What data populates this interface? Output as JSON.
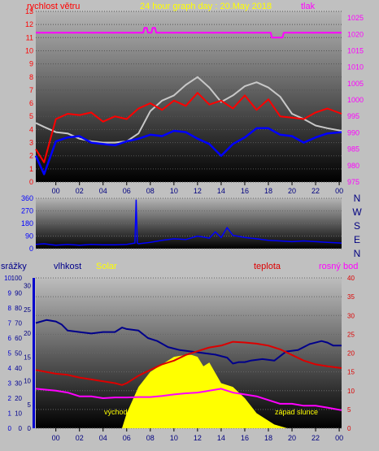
{
  "chart_data": [
    {
      "type": "line",
      "title": "24 hour graph day : 20.May 2018",
      "left_axis_label": "rychlost větru",
      "right_axis_label": "tlak",
      "left_ylim": [
        0,
        13
      ],
      "right_ylim": [
        975,
        1027
      ],
      "left_ticks": [
        "0",
        "1",
        "2",
        "3",
        "4",
        "5",
        "6",
        "7",
        "8",
        "9",
        "10",
        "11",
        "12",
        "13"
      ],
      "right_ticks": [
        "975",
        "980",
        "985",
        "990",
        "995",
        "1000",
        "1005",
        "1010",
        "1015",
        "1020",
        "1025"
      ],
      "x_ticks": [
        "00",
        "02",
        "04",
        "06",
        "08",
        "10",
        "12",
        "14",
        "16",
        "18",
        "20",
        "22",
        "00"
      ],
      "x_hours_range": [
        -1.7,
        24.2
      ],
      "colors": {
        "gust": "#ff0000",
        "avg_wind": "#0000ff",
        "pressure": "#ff00ff",
        "wind_line": "#c8c8c8"
      },
      "series": [
        {
          "key": "pressure",
          "axis": "right",
          "x": [
            -1.7,
            7.4,
            7.5,
            7.7,
            7.8,
            8.1,
            8.2,
            8.4,
            8.5,
            18.2,
            18.3,
            19.2,
            19.3,
            24.2
          ],
          "values": [
            1020.5,
            1020.5,
            1022,
            1022,
            1020.5,
            1020.5,
            1022,
            1022,
            1020.5,
            1020.5,
            1019,
            1019,
            1020.5,
            1020.5
          ]
        },
        {
          "key": "wind_line",
          "axis": "left",
          "x": [
            -1.7,
            -1,
            0,
            1,
            2,
            3,
            4,
            5,
            6,
            7,
            8,
            9,
            10,
            11,
            12,
            13,
            14,
            15,
            16,
            17,
            18,
            19,
            20,
            21,
            22,
            23,
            24.2
          ],
          "values": [
            4.5,
            4.2,
            3.8,
            3.7,
            3.3,
            3.1,
            3.0,
            3.0,
            3.1,
            3.7,
            5.4,
            6.2,
            6.6,
            7.4,
            8.0,
            7.2,
            6.1,
            6.6,
            7.3,
            7.6,
            7.2,
            6.5,
            5.2,
            4.8,
            4.3,
            4.1,
            3.9
          ]
        },
        {
          "key": "gust",
          "axis": "left",
          "x": [
            -1.7,
            -1,
            0,
            1,
            2,
            3,
            4,
            5,
            6,
            7,
            8,
            9,
            10,
            11,
            12,
            13,
            14,
            15,
            16,
            17,
            18,
            19,
            20,
            21,
            22,
            23,
            24.2
          ],
          "values": [
            2.5,
            1.5,
            4.8,
            5.2,
            5.1,
            5.3,
            4.6,
            5.0,
            4.8,
            5.6,
            6.0,
            5.5,
            6.2,
            5.8,
            6.8,
            5.9,
            6.2,
            5.6,
            6.6,
            5.5,
            6.3,
            5.0,
            4.9,
            4.8,
            5.3,
            5.6,
            5.2
          ]
        },
        {
          "key": "avg_wind",
          "axis": "left",
          "x": [
            -1.7,
            -1,
            0,
            1,
            2,
            3,
            4,
            5,
            6,
            7,
            8,
            9,
            10,
            11,
            12,
            13,
            14,
            15,
            16,
            17,
            18,
            19,
            20,
            21,
            22,
            23,
            24.2
          ],
          "values": [
            2.0,
            0.6,
            3.1,
            3.4,
            3.5,
            3.0,
            2.9,
            2.8,
            3.1,
            3.3,
            3.6,
            3.5,
            3.9,
            3.8,
            3.3,
            2.9,
            2.0,
            2.9,
            3.4,
            4.1,
            4.1,
            3.6,
            3.5,
            3.0,
            3.4,
            3.7,
            3.8
          ]
        }
      ]
    },
    {
      "type": "line",
      "ylim": [
        0,
        360
      ],
      "y_ticks": [
        "0",
        "90",
        "180",
        "270",
        "360"
      ],
      "compass": [
        "N",
        "W",
        "S",
        "E",
        "N"
      ],
      "color": "#0000ff",
      "x": [
        -1.7,
        -1,
        0,
        1,
        2,
        3,
        4,
        5,
        6,
        6.7,
        6.8,
        6.9,
        7,
        8,
        9,
        10,
        11,
        12,
        13,
        13.5,
        14,
        14.5,
        15,
        16,
        17,
        18,
        19,
        20,
        21,
        22,
        23,
        24.2
      ],
      "values": [
        30,
        35,
        25,
        30,
        25,
        30,
        28,
        28,
        30,
        40,
        350,
        40,
        35,
        45,
        60,
        70,
        65,
        90,
        75,
        120,
        80,
        150,
        95,
        80,
        70,
        60,
        55,
        50,
        55,
        50,
        45,
        40
      ]
    },
    {
      "type": "line",
      "labels": {
        "precip": "srážky",
        "humidity": "vlhkost",
        "solar": "Solar",
        "temp": "teplota",
        "dew": "rosný bod"
      },
      "precip_ticks": [
        "0",
        "1",
        "2",
        "3",
        "4",
        "5",
        "6",
        "7",
        "8",
        "9",
        "10"
      ],
      "humidity_ticks": [
        "0",
        "10",
        "20",
        "30",
        "40",
        "50",
        "60",
        "70",
        "80",
        "90",
        "100"
      ],
      "solar_ticks": [
        "0",
        "5",
        "10",
        "15",
        "20",
        "25",
        "30"
      ],
      "temp_ticks": [
        "0",
        "5",
        "10",
        "15",
        "20",
        "25",
        "30",
        "35",
        "40"
      ],
      "humidity_ylim": [
        0,
        100
      ],
      "temp_ylim": [
        0,
        40
      ],
      "x_ticks": [
        "00",
        "02",
        "04",
        "06",
        "08",
        "10",
        "12",
        "14",
        "16",
        "18",
        "20",
        "22",
        "00"
      ],
      "x_hours_range": [
        -1.7,
        24.2
      ],
      "annotations": {
        "sunrise": "východ slunce",
        "sunset": "západ slunce"
      },
      "colors": {
        "humidity": "#00008b",
        "temp": "#dd0000",
        "dew": "#ff00ff",
        "solar": "#ffff00"
      },
      "series": [
        {
          "key": "solar",
          "axis": "temp",
          "x": [
            5.6,
            6,
            7,
            8,
            9,
            10,
            11,
            11.5,
            12,
            12.5,
            13,
            14,
            15,
            16,
            17,
            18.5,
            19.6
          ],
          "values": [
            0,
            4,
            11,
            15,
            17,
            19,
            19.5,
            19.5,
            19,
            16.5,
            17.5,
            12,
            11,
            8,
            4,
            1,
            0
          ]
        },
        {
          "key": "humidity",
          "axis": "humidity",
          "x": [
            -1.7,
            -0.8,
            0,
            0.5,
            1,
            2,
            3,
            4,
            5,
            5.6,
            6,
            7,
            7.8,
            8.6,
            9.5,
            10.5,
            11.5,
            12.5,
            13.5,
            14.5,
            15,
            15.5,
            16,
            16.5,
            17.5,
            18.5,
            19.5,
            20.5,
            21.5,
            22.5,
            23,
            23.5,
            24.2
          ],
          "values": [
            70,
            72,
            71,
            69,
            65,
            64,
            63,
            64,
            64,
            67,
            66,
            65,
            60,
            58,
            54,
            52,
            51,
            50,
            49,
            47,
            43,
            44,
            44,
            45,
            46,
            45,
            51,
            52,
            56,
            58,
            57,
            55,
            55
          ]
        },
        {
          "key": "temp",
          "axis": "temp",
          "x": [
            -1.7,
            0,
            1,
            2,
            3,
            4,
            5,
            5.6,
            6,
            7,
            8,
            9,
            10,
            11,
            12,
            13,
            14,
            15,
            16,
            17,
            18,
            19,
            20,
            21,
            22,
            23,
            24.2
          ],
          "values": [
            15.5,
            14.5,
            14.2,
            13.5,
            13,
            12.5,
            12,
            11.5,
            12,
            14,
            15.5,
            17,
            18,
            19.5,
            20.5,
            21.5,
            22,
            23,
            22.8,
            22.5,
            22,
            21,
            19.5,
            18,
            17,
            16.5,
            16
          ]
        },
        {
          "key": "dew",
          "axis": "temp",
          "x": [
            -1.7,
            0,
            1,
            2,
            3,
            4,
            5,
            6,
            7,
            8,
            9,
            10,
            11,
            12,
            13,
            14,
            15,
            16,
            17,
            18,
            19,
            20,
            21,
            22,
            23,
            24.2
          ],
          "values": [
            10.5,
            10,
            9.5,
            8.5,
            8.5,
            8,
            8.2,
            8.2,
            8.3,
            8.3,
            8.6,
            9,
            9.3,
            9.5,
            10,
            10.5,
            9.5,
            9,
            8.5,
            7.5,
            6.5,
            6.5,
            6,
            6,
            5.5,
            4.8
          ]
        }
      ]
    }
  ]
}
